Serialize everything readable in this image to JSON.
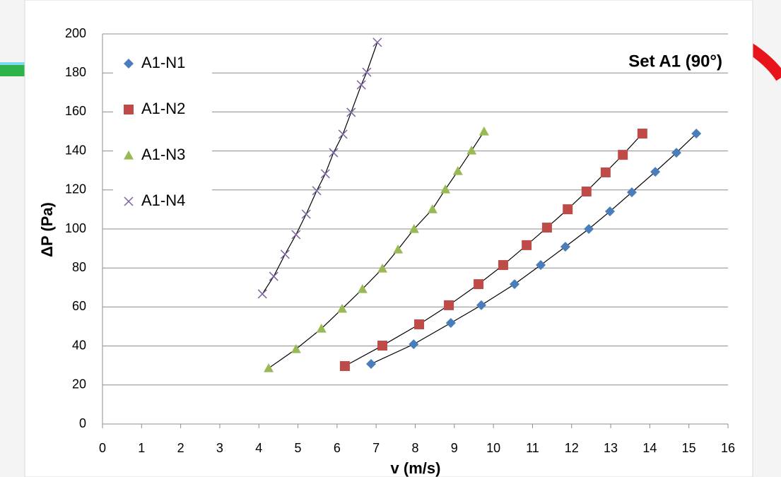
{
  "chart_data": {
    "type": "scatter",
    "title": "Set A1 (90°)",
    "x_label": "v (m/s)",
    "y_label": "ΔP (Pa)",
    "xlim": [
      0,
      16
    ],
    "ylim": [
      0,
      200
    ],
    "xticks": [
      0,
      1,
      2,
      3,
      4,
      5,
      6,
      7,
      8,
      9,
      10,
      11,
      12,
      13,
      14,
      15,
      16
    ],
    "yticks": [
      0,
      20,
      40,
      60,
      80,
      100,
      120,
      140,
      160,
      180,
      200
    ],
    "grid": true,
    "legend": "upper left",
    "trendline": true,
    "series": [
      {
        "name": "A1-N1",
        "color": "#4a7ebb",
        "marker": "diamond",
        "x": [
          6.87,
          7.96,
          8.91,
          9.69,
          10.54,
          11.21,
          11.84,
          12.44,
          12.98,
          13.54,
          14.14,
          14.68,
          15.19
        ],
        "values": [
          30.8,
          40.9,
          51.8,
          60.9,
          71.7,
          81.5,
          90.9,
          100,
          109,
          118.8,
          129.3,
          139.1,
          148.9
        ]
      },
      {
        "name": "A1-N2",
        "color": "#be4b48",
        "marker": "square",
        "x": [
          6.2,
          7.16,
          8.1,
          8.86,
          9.62,
          10.25,
          10.85,
          11.37,
          11.9,
          12.38,
          12.87,
          13.31,
          13.81
        ],
        "values": [
          29.7,
          40.2,
          51.1,
          60.9,
          71.7,
          81.5,
          91.7,
          100.7,
          110.1,
          119.2,
          129,
          138,
          148.9
        ]
      },
      {
        "name": "A1-N3",
        "color": "#98b954",
        "marker": "triangle",
        "x": [
          4.25,
          4.95,
          5.6,
          6.13,
          6.65,
          7.16,
          7.56,
          7.97,
          8.44,
          8.77,
          9.09,
          9.44,
          9.76
        ],
        "values": [
          28.6,
          38.4,
          48.9,
          59.1,
          69.2,
          79.7,
          89.5,
          100,
          110.1,
          120.3,
          129.7,
          140.2,
          150
        ]
      },
      {
        "name": "A1-N4",
        "color": "#7d60a0",
        "marker": "x",
        "x": [
          4.09,
          4.38,
          4.67,
          4.95,
          5.21,
          5.48,
          5.7,
          5.91,
          6.15,
          6.36,
          6.62,
          6.76,
          7.03
        ],
        "values": [
          66.7,
          75.7,
          87,
          97.1,
          107.6,
          119.6,
          128.3,
          139.1,
          148.6,
          159.8,
          173.9,
          180.4,
          195.7
        ]
      }
    ]
  }
}
